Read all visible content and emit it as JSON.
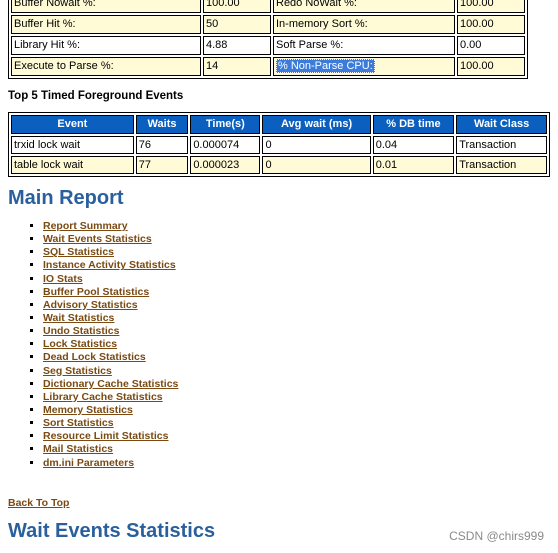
{
  "efficiency": {
    "rows": [
      [
        "Buffer Nowait %:",
        "100.00",
        "Redo NoWait %:",
        "100.00"
      ],
      [
        "Buffer Hit %:",
        "50",
        "In-memory Sort %:",
        "100.00"
      ],
      [
        "Library Hit %:",
        "4.88",
        "Soft Parse %:",
        "0.00"
      ],
      [
        "Execute to Parse %:",
        "14",
        "% Non-Parse CPU:",
        "100.00"
      ]
    ]
  },
  "top5": {
    "title": "Top 5 Timed Foreground Events",
    "headers": [
      "Event",
      "Waits",
      "Time(s)",
      "Avg wait (ms)",
      "% DB time",
      "Wait Class"
    ],
    "rows": [
      [
        "trxid lock wait",
        "76",
        "0.000074",
        "0",
        "0.04",
        "Transaction"
      ],
      [
        "table lock wait",
        "77",
        "0.000023",
        "0",
        "0.01",
        "Transaction"
      ]
    ]
  },
  "main_report": {
    "title": "Main Report",
    "links": [
      "Report Summary",
      "Wait Events Statistics",
      "SQL Statistics",
      "Instance Activity Statistics",
      "IO Stats",
      "Buffer Pool Statistics",
      "Advisory Statistics",
      "Wait Statistics",
      "Undo Statistics",
      "Lock Statistics",
      "Dead Lock Statistics",
      "Seg Statistics",
      "Dictionary Cache Statistics",
      "Library Cache Statistics",
      "Memory Statistics",
      "Sort Statistics",
      "Resource Limit Statistics",
      "Mail Statistics",
      "dm.ini Parameters"
    ],
    "back_to_top": "Back To Top"
  },
  "wait_events": {
    "title": "Wait Events Statistics"
  },
  "watermark": "CSDN @chirs999",
  "colors": {
    "header_bg": "#0a5fbf",
    "row_highlight": "#fffbd6",
    "heading": "#2a5f9e",
    "link": "#7a4a12",
    "selection": "#3b7bdc"
  }
}
